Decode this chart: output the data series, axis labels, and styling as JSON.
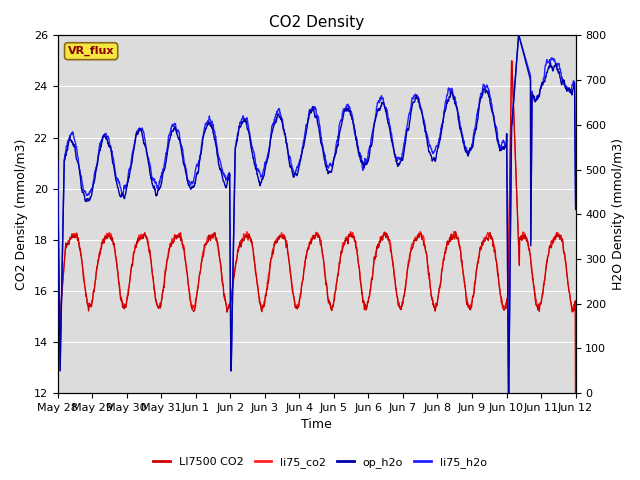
{
  "title": "CO2 Density",
  "xlabel": "Time",
  "ylabel_left": "CO2 Density (mmol/m3)",
  "ylabel_right": "H2O Density (mmol/m3)",
  "ylim_left": [
    12,
    26
  ],
  "ylim_right": [
    0,
    800
  ],
  "bg_color": "#dcdcdc",
  "fig_bg": "#ffffff",
  "vr_flux_label": "VR_flux",
  "legend": [
    "LI7500 CO2",
    "li75_co2",
    "op_h2o",
    "li75_h2o"
  ],
  "line_colors": [
    "#cc0000",
    "#ff2222",
    "#0000aa",
    "#2222ff"
  ],
  "xtick_labels": [
    "May 28",
    "May 29",
    "May 30",
    "May 31",
    "Jun 1",
    "Jun 2",
    "Jun 3",
    "Jun 4",
    "Jun 5",
    "Jun 6",
    "Jun 7",
    "Jun 8",
    "Jun 9",
    "Jun 10",
    "Jun 11",
    "Jun 12"
  ],
  "n_points": 2000,
  "days": 15
}
